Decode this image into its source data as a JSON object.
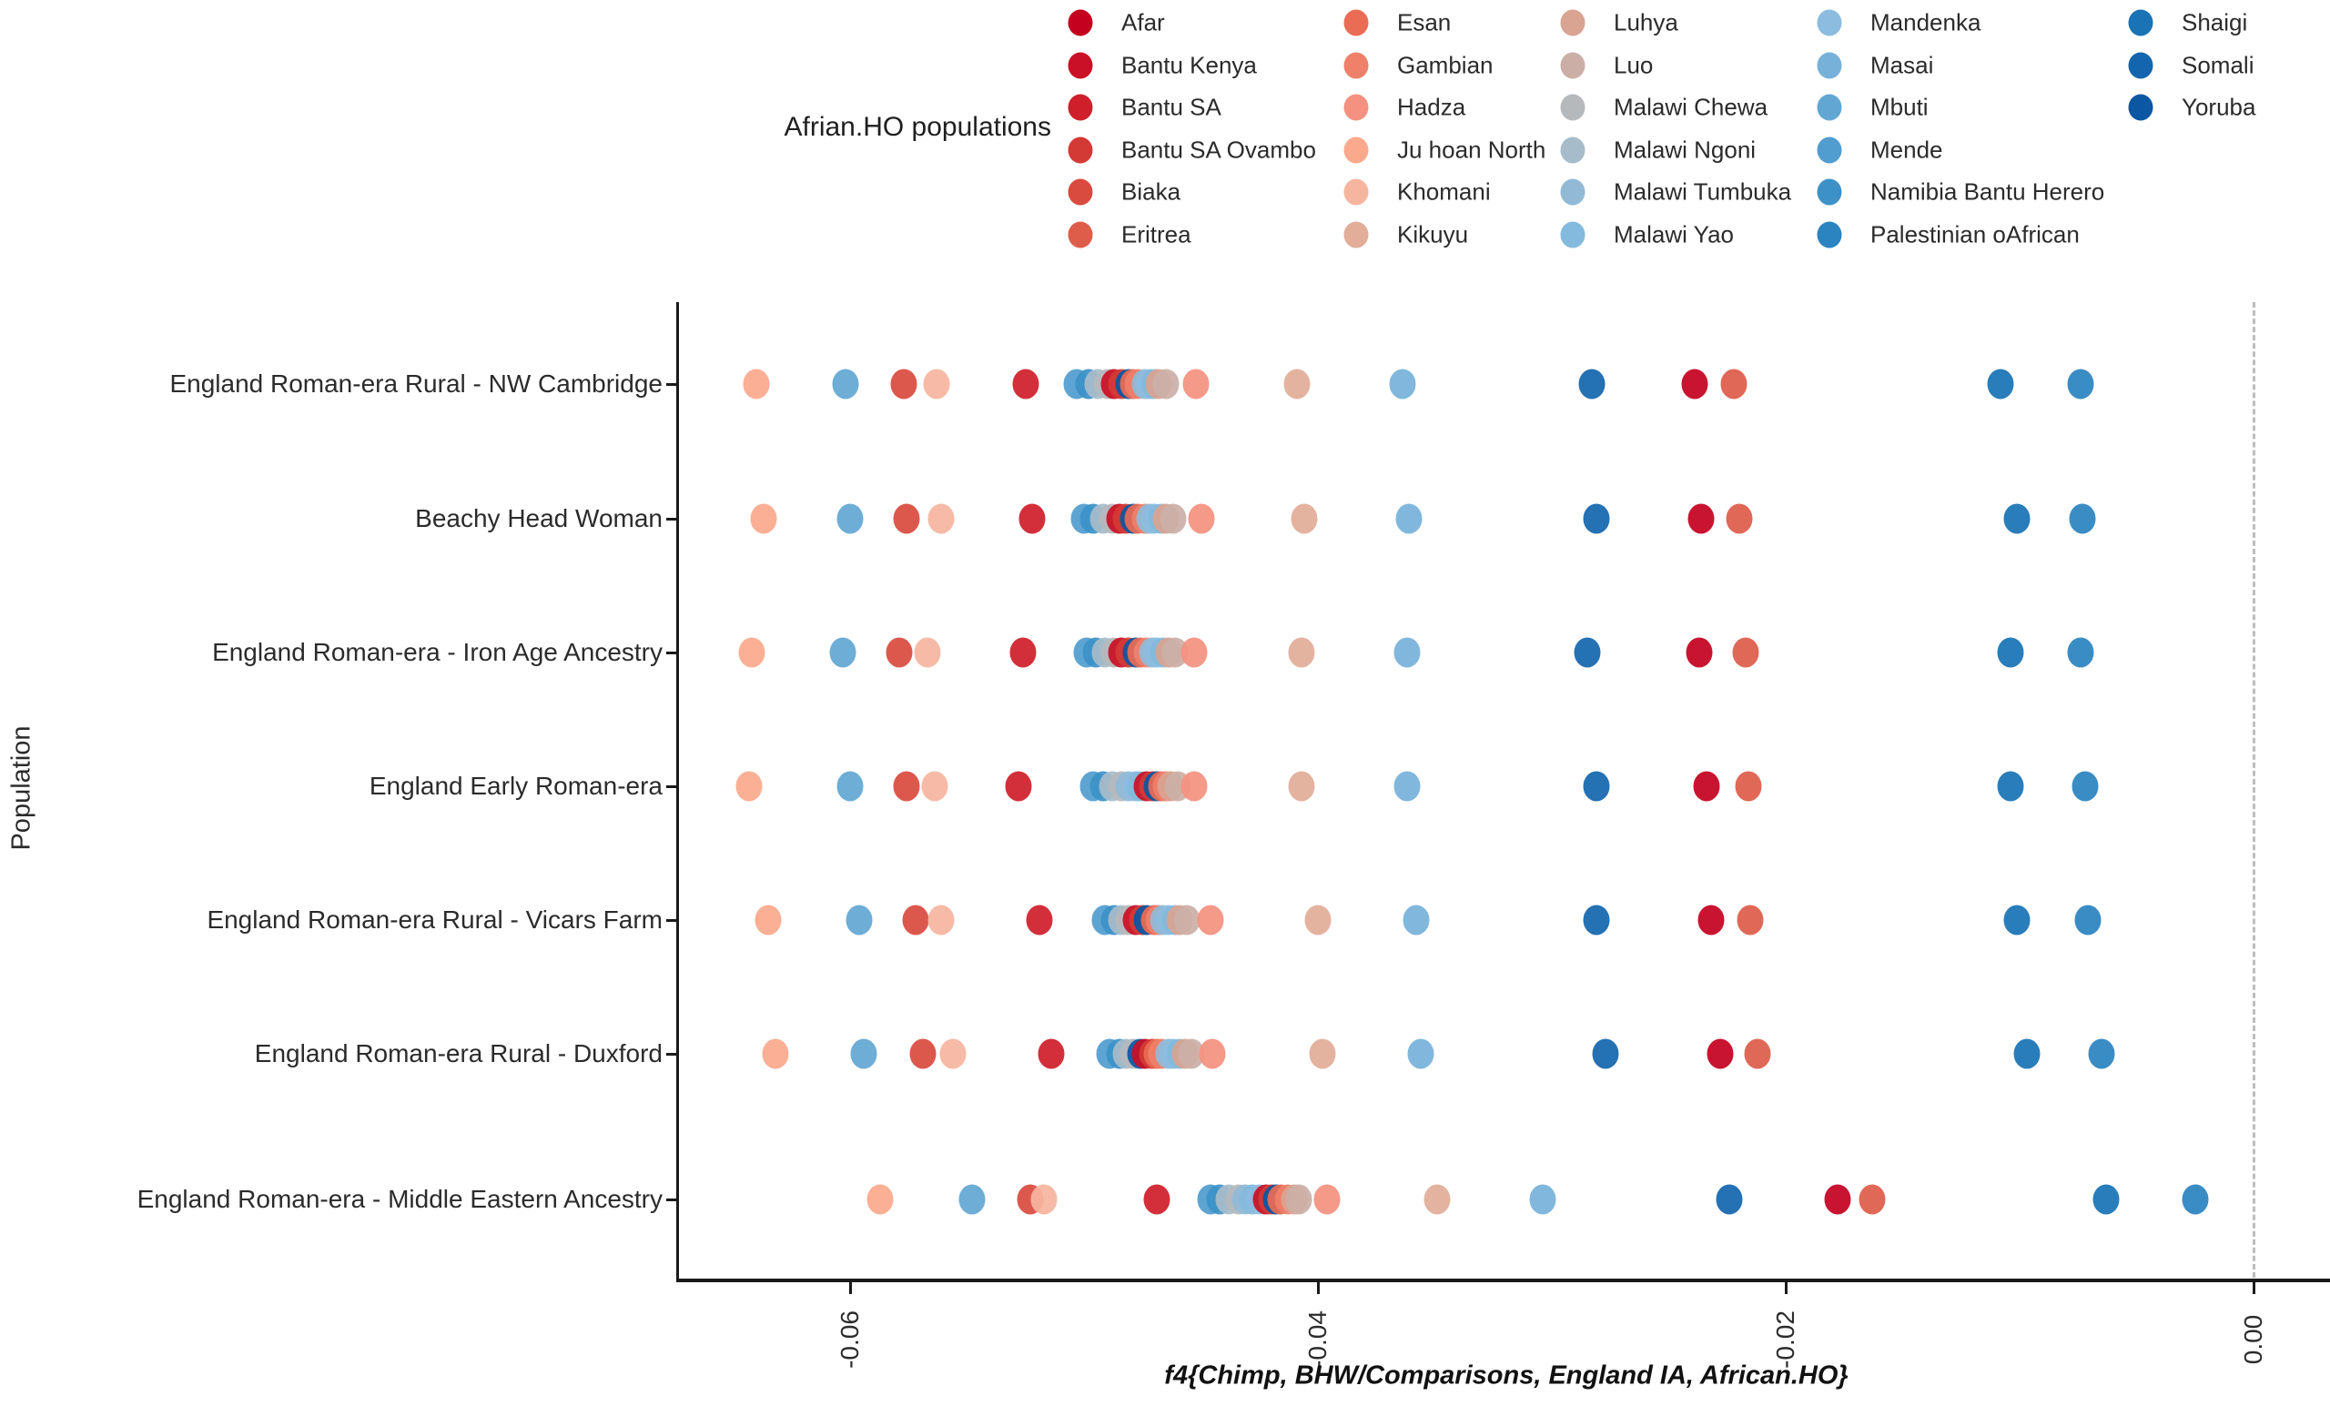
{
  "legend": {
    "title": "Afrian.HO populations",
    "columns": [
      [
        "Afar",
        "Bantu Kenya",
        "Bantu SA",
        "Bantu SA Ovambo",
        "Biaka",
        "Eritrea"
      ],
      [
        "Esan",
        "Gambian",
        "Hadza",
        "Ju hoan North",
        "Khomani",
        "Kikuyu"
      ],
      [
        "Luhya",
        "Luo",
        "Malawi Chewa",
        "Malawi Ngoni",
        "Malawi Tumbuka",
        "Malawi Yao"
      ],
      [
        "Mandenka",
        "Masai",
        "Mbuti",
        "Mende",
        "Namibia Bantu Herero",
        "Palestinian oAfrican"
      ],
      [
        "Shaigi",
        "Somali",
        "Yoruba"
      ]
    ]
  },
  "chart_data": {
    "type": "scatter",
    "xlabel": "f4{Chimp, BHW/Comparisons, England IA, African.HO}",
    "ylabel": "Population",
    "xlim": [
      -0.0673,
      0.0033
    ],
    "x_ticks": [
      -0.06,
      -0.04,
      -0.02,
      0.0
    ],
    "x_tick_labels": [
      "-0.06",
      "-0.04",
      "-0.02",
      "0.00"
    ],
    "grid": "off",
    "legend_position": "top",
    "zero_reference_line": {
      "x": 0.0,
      "style": "dashed",
      "color": "#bdbdbd"
    },
    "point_colors": {
      "Afar": "#c40220",
      "Bantu Kenya": "#ca1026",
      "Bantu SA": "#cf1f2b",
      "Bantu SA Ovambo": "#d43a35",
      "Biaka": "#d94b3f",
      "Eritrea": "#de5d4a",
      "Esan": "#ea6c55",
      "Gambian": "#ef806a",
      "Hadza": "#f49180",
      "Ju hoan North": "#fba98c",
      "Khomani": "#f6b59f",
      "Kikuyu": "#e2ad99",
      "Luhya": "#d9a491",
      "Luo": "#cbafa7",
      "Malawi Chewa": "#b6b9bc",
      "Malawi Ngoni": "#a7bcca",
      "Malawi Tumbuka": "#92bad6",
      "Malawi Yao": "#83badd",
      "Mandenka": "#8cbce0",
      "Masai": "#77b1d9",
      "Mbuti": "#62a7d3",
      "Mende": "#529dcf",
      "Namibia Bantu Herero": "#3c92c8",
      "Palestinian oAfrican": "#2b83bf",
      "Shaigi": "#1973b5",
      "Somali": "#1366ad",
      "Yoruba": "#0b57a3"
    },
    "categories": [
      "England Roman-era Rural - NW Cambridge",
      "Beachy Head Woman",
      "England Roman-era - Iron Age Ancestry",
      "England Early Roman-era",
      "England Roman-era Rural - Vicars Farm",
      "England Roman-era Rural - Duxford",
      "England Roman-era - Middle Eastern Ancestry"
    ],
    "series": [
      {
        "name": "England Roman-era Rural - NW Cambridge",
        "points": [
          [
            "Ju hoan North",
            -0.064
          ],
          [
            "Mbuti",
            -0.0602
          ],
          [
            "Biaka",
            -0.0577
          ],
          [
            "Khomani",
            -0.0563
          ],
          [
            "Bantu SA",
            -0.0525
          ],
          [
            "Mende",
            -0.0503
          ],
          [
            "Namibia Bantu Herero",
            -0.0498
          ],
          [
            "Malawi Ngoni",
            -0.0494
          ],
          [
            "Malawi Chewa",
            -0.049
          ],
          [
            "Bantu Kenya",
            -0.0487
          ],
          [
            "Bantu SA Ovambo",
            -0.0484
          ],
          [
            "Yoruba",
            -0.0481
          ],
          [
            "Esan",
            -0.0479
          ],
          [
            "Gambian",
            -0.0477
          ],
          [
            "Malawi Tumbuka",
            -0.0474
          ],
          [
            "Mandenka",
            -0.0472
          ],
          [
            "Malawi Yao",
            -0.047
          ],
          [
            "Luhya",
            -0.0468
          ],
          [
            "Luo",
            -0.0465
          ],
          [
            "Hadza",
            -0.0452
          ],
          [
            "Kikuyu",
            -0.0409
          ],
          [
            "Masai",
            -0.0364
          ],
          [
            "Somali",
            -0.0283
          ],
          [
            "Afar",
            -0.0239
          ],
          [
            "Eritrea",
            -0.0222
          ],
          [
            "Shaigi",
            -0.0108
          ],
          [
            "Palestinian oAfrican",
            -0.0074
          ]
        ]
      },
      {
        "name": "Beachy Head Woman",
        "points": [
          [
            "Ju hoan North",
            -0.0637
          ],
          [
            "Mbuti",
            -0.06
          ],
          [
            "Biaka",
            -0.0576
          ],
          [
            "Khomani",
            -0.0561
          ],
          [
            "Bantu SA",
            -0.0522
          ],
          [
            "Mende",
            -0.05
          ],
          [
            "Namibia Bantu Herero",
            -0.0496
          ],
          [
            "Malawi Ngoni",
            -0.0492
          ],
          [
            "Malawi Chewa",
            -0.0488
          ],
          [
            "Bantu Kenya",
            -0.0485
          ],
          [
            "Bantu SA Ovambo",
            -0.0482
          ],
          [
            "Yoruba",
            -0.0479
          ],
          [
            "Esan",
            -0.0477
          ],
          [
            "Gambian",
            -0.0474
          ],
          [
            "Malawi Tumbuka",
            -0.0472
          ],
          [
            "Mandenka",
            -0.047
          ],
          [
            "Malawi Yao",
            -0.0467
          ],
          [
            "Luhya",
            -0.0465
          ],
          [
            "Luo",
            -0.0462
          ],
          [
            "Hadza",
            -0.045
          ],
          [
            "Kikuyu",
            -0.0406
          ],
          [
            "Masai",
            -0.0361
          ],
          [
            "Somali",
            -0.0281
          ],
          [
            "Afar",
            -0.0236
          ],
          [
            "Eritrea",
            -0.022
          ],
          [
            "Shaigi",
            -0.0101
          ],
          [
            "Palestinian oAfrican",
            -0.0073
          ]
        ]
      },
      {
        "name": "England Roman-era - Iron Age Ancestry",
        "points": [
          [
            "Ju hoan North",
            -0.0642
          ],
          [
            "Mbuti",
            -0.0603
          ],
          [
            "Biaka",
            -0.0579
          ],
          [
            "Khomani",
            -0.0567
          ],
          [
            "Bantu SA",
            -0.0526
          ],
          [
            "Mende",
            -0.0499
          ],
          [
            "Namibia Bantu Herero",
            -0.0495
          ],
          [
            "Malawi Ngoni",
            -0.0491
          ],
          [
            "Malawi Chewa",
            -0.0487
          ],
          [
            "Bantu Kenya",
            -0.0484
          ],
          [
            "Bantu SA Ovambo",
            -0.0481
          ],
          [
            "Yoruba",
            -0.0478
          ],
          [
            "Esan",
            -0.0476
          ],
          [
            "Gambian",
            -0.0473
          ],
          [
            "Malawi Tumbuka",
            -0.0471
          ],
          [
            "Mandenka",
            -0.0469
          ],
          [
            "Malawi Yao",
            -0.0466
          ],
          [
            "Luhya",
            -0.0464
          ],
          [
            "Luo",
            -0.0461
          ],
          [
            "Hadza",
            -0.0453
          ],
          [
            "Kikuyu",
            -0.0407
          ],
          [
            "Masai",
            -0.0362
          ],
          [
            "Somali",
            -0.0285
          ],
          [
            "Afar",
            -0.0237
          ],
          [
            "Eritrea",
            -0.0217
          ],
          [
            "Shaigi",
            -0.0104
          ],
          [
            "Palestinian oAfrican",
            -0.0074
          ]
        ]
      },
      {
        "name": "England Early Roman-era",
        "points": [
          [
            "Ju hoan North",
            -0.0643
          ],
          [
            "Mbuti",
            -0.06
          ],
          [
            "Biaka",
            -0.0576
          ],
          [
            "Khomani",
            -0.0564
          ],
          [
            "Bantu SA",
            -0.0528
          ],
          [
            "Mende",
            -0.0496
          ],
          [
            "Namibia Bantu Herero",
            -0.0492
          ],
          [
            "Malawi Ngoni",
            -0.0488
          ],
          [
            "Malawi Chewa",
            -0.0484
          ],
          [
            "Malawi Tumbuka",
            -0.0481
          ],
          [
            "Mandenka",
            -0.0478
          ],
          [
            "Malawi Yao",
            -0.0476
          ],
          [
            "Bantu Kenya",
            -0.0473
          ],
          [
            "Bantu SA Ovambo",
            -0.0471
          ],
          [
            "Yoruba",
            -0.0469
          ],
          [
            "Esan",
            -0.0467
          ],
          [
            "Gambian",
            -0.0465
          ],
          [
            "Luhya",
            -0.0463
          ],
          [
            "Luo",
            -0.046
          ],
          [
            "Hadza",
            -0.0453
          ],
          [
            "Kikuyu",
            -0.0407
          ],
          [
            "Masai",
            -0.0362
          ],
          [
            "Somali",
            -0.0281
          ],
          [
            "Afar",
            -0.0234
          ],
          [
            "Eritrea",
            -0.0216
          ],
          [
            "Shaigi",
            -0.0104
          ],
          [
            "Palestinian oAfrican",
            -0.0072
          ]
        ]
      },
      {
        "name": "England Roman-era Rural - Vicars Farm",
        "points": [
          [
            "Ju hoan North",
            -0.0635
          ],
          [
            "Mbuti",
            -0.0596
          ],
          [
            "Biaka",
            -0.0572
          ],
          [
            "Khomani",
            -0.0561
          ],
          [
            "Bantu SA",
            -0.0519
          ],
          [
            "Mende",
            -0.0491
          ],
          [
            "Namibia Bantu Herero",
            -0.0487
          ],
          [
            "Malawi Ngoni",
            -0.0484
          ],
          [
            "Malawi Chewa",
            -0.0481
          ],
          [
            "Bantu Kenya",
            -0.0478
          ],
          [
            "Bantu SA Ovambo",
            -0.0475
          ],
          [
            "Yoruba",
            -0.0473
          ],
          [
            "Esan",
            -0.047
          ],
          [
            "Gambian",
            -0.0468
          ],
          [
            "Malawi Tumbuka",
            -0.0466
          ],
          [
            "Mandenka",
            -0.0464
          ],
          [
            "Malawi Yao",
            -0.0461
          ],
          [
            "Luhya",
            -0.0459
          ],
          [
            "Luo",
            -0.0456
          ],
          [
            "Hadza",
            -0.0446
          ],
          [
            "Kikuyu",
            -0.04
          ],
          [
            "Masai",
            -0.0358
          ],
          [
            "Somali",
            -0.0281
          ],
          [
            "Afar",
            -0.0232
          ],
          [
            "Eritrea",
            -0.0215
          ],
          [
            "Shaigi",
            -0.0101
          ],
          [
            "Palestinian oAfrican",
            -0.0071
          ]
        ]
      },
      {
        "name": "England Roman-era Rural - Duxford",
        "points": [
          [
            "Ju hoan North",
            -0.0632
          ],
          [
            "Mbuti",
            -0.0594
          ],
          [
            "Biaka",
            -0.0569
          ],
          [
            "Khomani",
            -0.0556
          ],
          [
            "Bantu SA",
            -0.0514
          ],
          [
            "Mende",
            -0.0489
          ],
          [
            "Namibia Bantu Herero",
            -0.0485
          ],
          [
            "Malawi Ngoni",
            -0.0482
          ],
          [
            "Malawi Chewa",
            -0.0479
          ],
          [
            "Yoruba",
            -0.0476
          ],
          [
            "Bantu Kenya",
            -0.0474
          ],
          [
            "Bantu SA Ovambo",
            -0.0471
          ],
          [
            "Esan",
            -0.0469
          ],
          [
            "Gambian",
            -0.0467
          ],
          [
            "Malawi Tumbuka",
            -0.0464
          ],
          [
            "Mandenka",
            -0.0462
          ],
          [
            "Malawi Yao",
            -0.0459
          ],
          [
            "Luhya",
            -0.0457
          ],
          [
            "Luo",
            -0.0454
          ],
          [
            "Hadza",
            -0.0445
          ],
          [
            "Kikuyu",
            -0.0398
          ],
          [
            "Masai",
            -0.0356
          ],
          [
            "Somali",
            -0.0277
          ],
          [
            "Afar",
            -0.0228
          ],
          [
            "Eritrea",
            -0.0212
          ],
          [
            "Shaigi",
            -0.0097
          ],
          [
            "Palestinian oAfrican",
            -0.0065
          ]
        ]
      },
      {
        "name": "England Roman-era - Middle Eastern Ancestry",
        "points": [
          [
            "Ju hoan North",
            -0.0587
          ],
          [
            "Mbuti",
            -0.0548
          ],
          [
            "Biaka",
            -0.0523
          ],
          [
            "Khomani",
            -0.0517
          ],
          [
            "Bantu SA",
            -0.0469
          ],
          [
            "Mende",
            -0.0446
          ],
          [
            "Namibia Bantu Herero",
            -0.0442
          ],
          [
            "Malawi Ngoni",
            -0.0438
          ],
          [
            "Malawi Chewa",
            -0.0434
          ],
          [
            "Malawi Tumbuka",
            -0.0431
          ],
          [
            "Malawi Yao",
            -0.0428
          ],
          [
            "Mandenka",
            -0.0425
          ],
          [
            "Bantu Kenya",
            -0.0422
          ],
          [
            "Bantu SA Ovambo",
            -0.042
          ],
          [
            "Yoruba",
            -0.0418
          ],
          [
            "Esan",
            -0.0416
          ],
          [
            "Gambian",
            -0.0413
          ],
          [
            "Luhya",
            -0.041
          ],
          [
            "Luo",
            -0.0408
          ],
          [
            "Hadza",
            -0.0396
          ],
          [
            "Kikuyu",
            -0.0349
          ],
          [
            "Masai",
            -0.0304
          ],
          [
            "Somali",
            -0.0224
          ],
          [
            "Afar",
            -0.0178
          ],
          [
            "Eritrea",
            -0.0163
          ],
          [
            "Shaigi",
            -0.0063
          ],
          [
            "Palestinian oAfrican",
            -0.0025
          ]
        ]
      }
    ]
  }
}
